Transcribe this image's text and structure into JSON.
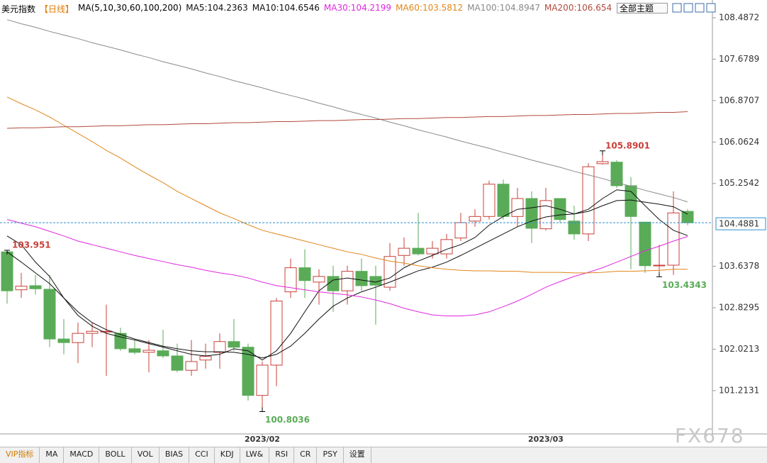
{
  "header": {
    "title": "美元指数",
    "period": "【日线】",
    "indicator": "MA(5,10,30,60,100,200)",
    "theme_button": "全部主题"
  },
  "chart_data": {
    "type": "candlestick",
    "categories": [
      null,
      null,
      null,
      null,
      null,
      null,
      null,
      null,
      null,
      null,
      null,
      null,
      null,
      null,
      null,
      null,
      null,
      null,
      "2023/02",
      null,
      null,
      null,
      null,
      null,
      null,
      null,
      null,
      null,
      null,
      null,
      null,
      null,
      null,
      null,
      null,
      null,
      null,
      null,
      "2023/03",
      null,
      null,
      null,
      null,
      null,
      null,
      null,
      null,
      null,
      null
    ],
    "open": [
      103.92,
      103.18,
      103.26,
      103.19,
      102.22,
      102.15,
      102.33,
      102.36,
      102.33,
      102.03,
      101.96,
      101.99,
      101.89,
      101.61,
      101.81,
      101.96,
      102.17,
      102.06,
      101.12,
      101.71,
      103.14,
      103.61,
      103.33,
      103.44,
      103.16,
      103.54,
      103.44,
      103.23,
      103.85,
      103.99,
      103.88,
      103.88,
      104.19,
      104.52,
      104.61,
      105.24,
      104.61,
      104.96,
      104.37,
      104.96,
      104.52,
      104.27,
      105.64,
      105.67,
      105.21,
      104.5,
      103.65,
      103.66,
      104.71
    ],
    "high": [
      103.951,
      103.51,
      103.47,
      103.47,
      102.61,
      102.54,
      102.54,
      102.89,
      102.44,
      102.2,
      102.2,
      102.4,
      102.13,
      102.2,
      102.13,
      102.33,
      102.61,
      102.13,
      101.78,
      103.02,
      103.79,
      103.97,
      103.58,
      103.65,
      103.65,
      103.79,
      103.65,
      104.09,
      104.2,
      104.68,
      104.13,
      104.27,
      104.68,
      104.75,
      105.31,
      105.33,
      105.17,
      105.1,
      105.17,
      104.96,
      104.82,
      105.65,
      105.8901,
      105.71,
      105.38,
      104.5,
      104.06,
      105.1,
      104.75
    ],
    "low": [
      102.91,
      103.02,
      103.09,
      102.06,
      101.92,
      101.75,
      102.06,
      101.5,
      101.99,
      101.92,
      101.57,
      101.85,
      101.57,
      101.5,
      101.64,
      101.64,
      101.99,
      101.02,
      100.8036,
      101.3,
      103.02,
      103.02,
      102.89,
      102.75,
      102.89,
      103.16,
      102.5,
      103.16,
      103.65,
      103.85,
      103.79,
      103.79,
      104.13,
      104.41,
      104.55,
      104.55,
      104.41,
      104.09,
      104.34,
      104.48,
      104.16,
      104.13,
      105.62,
      105.17,
      103.58,
      103.51,
      103.4343,
      103.47,
      104.44
    ],
    "close": [
      103.16,
      103.25,
      103.2,
      102.22,
      102.15,
      102.33,
      102.37,
      102.37,
      102.03,
      101.96,
      102.0,
      101.89,
      101.61,
      101.78,
      101.88,
      102.17,
      102.06,
      101.12,
      101.71,
      102.96,
      103.61,
      103.36,
      103.44,
      103.16,
      103.54,
      103.26,
      103.27,
      103.83,
      103.99,
      103.88,
      103.99,
      104.16,
      104.49,
      104.61,
      105.24,
      104.61,
      104.96,
      104.38,
      104.92,
      104.55,
      104.27,
      105.58,
      105.68,
      105.21,
      104.61,
      103.65,
      103.66,
      104.68,
      104.4881
    ],
    "up_color": "#c8403a",
    "down_color": "#5aab57",
    "series": [
      {
        "name": "MA5",
        "label": "MA5:104.2363",
        "color": "#111111",
        "values": [
          104.23,
          104.06,
          103.72,
          103.44,
          103.02,
          102.68,
          102.47,
          102.33,
          102.26,
          102.2,
          102.13,
          102.06,
          101.99,
          101.92,
          101.89,
          101.92,
          102.03,
          101.99,
          101.81,
          101.99,
          102.33,
          102.75,
          103.16,
          103.37,
          103.41,
          103.37,
          103.33,
          103.41,
          103.61,
          103.74,
          103.85,
          103.97,
          104.06,
          104.2,
          104.44,
          104.61,
          104.75,
          104.78,
          104.82,
          104.75,
          104.66,
          104.75,
          104.96,
          105.13,
          105.1,
          104.82,
          104.55,
          104.34,
          104.2363
        ]
      },
      {
        "name": "MA10",
        "label": "MA10:104.6546",
        "color": "#111111",
        "values": [
          103.92,
          103.72,
          103.51,
          103.3,
          103.02,
          102.75,
          102.54,
          102.4,
          102.31,
          102.22,
          102.15,
          102.08,
          102.03,
          101.99,
          101.97,
          101.97,
          101.96,
          101.92,
          101.85,
          101.92,
          102.08,
          102.33,
          102.61,
          102.86,
          103.02,
          103.14,
          103.23,
          103.33,
          103.44,
          103.55,
          103.62,
          103.72,
          103.85,
          103.99,
          104.13,
          104.27,
          104.41,
          104.52,
          104.6,
          104.64,
          104.66,
          104.71,
          104.82,
          104.92,
          104.93,
          104.89,
          104.85,
          104.8,
          104.6546
        ]
      },
      {
        "name": "MA30",
        "label": "MA30:104.2199",
        "color": "#e028e0",
        "values": [
          104.55,
          104.48,
          104.41,
          104.32,
          104.23,
          104.13,
          104.06,
          103.99,
          103.92,
          103.85,
          103.79,
          103.73,
          103.67,
          103.62,
          103.56,
          103.51,
          103.47,
          103.41,
          103.33,
          103.26,
          103.22,
          103.18,
          103.14,
          103.11,
          103.08,
          103.04,
          102.98,
          102.91,
          102.82,
          102.75,
          102.69,
          102.67,
          102.67,
          102.69,
          102.75,
          102.85,
          102.96,
          103.09,
          103.23,
          103.34,
          103.44,
          103.52,
          103.61,
          103.72,
          103.83,
          103.94,
          104.03,
          104.13,
          104.2199
        ]
      },
      {
        "name": "MA60",
        "label": "MA60:103.5812",
        "color": "#e0861a",
        "values": [
          106.94,
          106.81,
          106.69,
          106.55,
          106.39,
          106.23,
          106.07,
          105.9,
          105.75,
          105.58,
          105.42,
          105.27,
          105.1,
          104.96,
          104.82,
          104.68,
          104.57,
          104.45,
          104.34,
          104.27,
          104.2,
          104.13,
          104.06,
          103.99,
          103.92,
          103.87,
          103.8,
          103.74,
          103.7,
          103.65,
          103.61,
          103.58,
          103.56,
          103.55,
          103.55,
          103.54,
          103.54,
          103.52,
          103.52,
          103.52,
          103.51,
          103.51,
          103.52,
          103.54,
          103.54,
          103.55,
          103.56,
          103.58,
          103.5812
        ]
      },
      {
        "name": "MA100",
        "label": "MA100:104.8947",
        "color": "#8a8a8a",
        "values": [
          108.45,
          108.37,
          108.3,
          108.22,
          108.15,
          108.08,
          108.0,
          107.93,
          107.86,
          107.78,
          107.71,
          107.63,
          107.56,
          107.49,
          107.41,
          107.34,
          107.26,
          107.19,
          107.12,
          107.04,
          106.97,
          106.9,
          106.82,
          106.75,
          106.67,
          106.6,
          106.53,
          106.45,
          106.38,
          106.3,
          106.23,
          106.16,
          106.08,
          106.01,
          105.94,
          105.86,
          105.79,
          105.71,
          105.64,
          105.57,
          105.49,
          105.42,
          105.35,
          105.27,
          105.2,
          105.12,
          105.05,
          104.98,
          104.8947
        ]
      },
      {
        "name": "MA200",
        "label": "MA200:106.654",
        "color": "#b24a3c",
        "values": [
          106.33,
          106.34,
          106.34,
          106.35,
          106.36,
          106.36,
          106.37,
          106.38,
          106.38,
          106.39,
          106.4,
          106.4,
          106.41,
          106.42,
          106.42,
          106.43,
          106.44,
          106.44,
          106.45,
          106.46,
          106.46,
          106.47,
          106.48,
          106.48,
          106.49,
          106.5,
          106.5,
          106.51,
          106.52,
          106.52,
          106.53,
          106.54,
          106.54,
          106.55,
          106.56,
          106.56,
          106.57,
          106.58,
          106.58,
          106.59,
          106.6,
          106.6,
          106.61,
          106.62,
          106.62,
          106.63,
          106.64,
          106.64,
          106.654
        ]
      }
    ],
    "annotations": [
      {
        "x": 0,
        "y": 103.951,
        "color": "#c8403a"
      },
      {
        "x": 42,
        "y": 105.8901,
        "color": "#c8403a"
      },
      {
        "x": 18,
        "y": 100.8036,
        "color": "#5aab57"
      },
      {
        "x": 46,
        "y": 103.4343,
        "color": "#5aab57"
      }
    ],
    "ylim": [
      100.368,
      108.4872
    ],
    "yticks": [
      108.4872,
      107.6789,
      106.8707,
      106.0624,
      105.2542,
      103.6378,
      102.8295,
      102.0213,
      101.2131
    ]
  },
  "tabs": [
    "VIP指标",
    "MA",
    "MACD",
    "BOLL",
    "VOL",
    "BIAS",
    "CCI",
    "KDJ",
    "LW&",
    "RSI",
    "CR",
    "PSY",
    "设置"
  ],
  "watermark": "FX678"
}
